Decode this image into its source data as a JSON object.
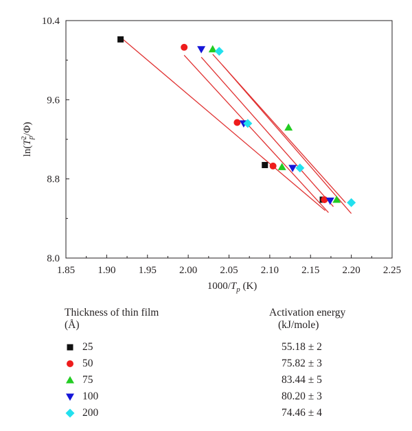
{
  "chart_data": {
    "type": "scatter",
    "xlabel_main": "1000/",
    "xlabel_var": "T",
    "xlabel_sub": "p",
    "xlabel_unit": " (K)",
    "ylabel_prefix": "ln(",
    "ylabel_var": "T",
    "ylabel_sup": "2",
    "ylabel_sub": "p",
    "ylabel_suffix": "/Φ)",
    "xlim": [
      1.85,
      2.25
    ],
    "ylim": [
      8.0,
      10.4
    ],
    "xticks": [
      "1.85",
      "1.90",
      "1.95",
      "2.00",
      "2.05",
      "2.10",
      "2.15",
      "2.20",
      "2.25"
    ],
    "yticks": [
      "8.0",
      "8.8",
      "9.6",
      "10.4"
    ],
    "grid": false,
    "fit_line_color": "#e03131",
    "series": [
      {
        "name": "25",
        "marker": "square",
        "color": "#111111",
        "x": [
          1.917,
          2.094,
          2.165
        ],
        "y": [
          10.21,
          8.94,
          8.59
        ],
        "fit": [
          [
            1.92,
            10.21
          ],
          [
            2.168,
            8.48
          ]
        ]
      },
      {
        "name": "50",
        "marker": "circle",
        "color": "#ee1c1c",
        "x": [
          1.995,
          2.06,
          2.104,
          2.167
        ],
        "y": [
          10.13,
          9.37,
          8.93,
          8.59
        ],
        "fit": [
          [
            1.995,
            10.05
          ],
          [
            2.172,
            8.46
          ]
        ]
      },
      {
        "name": "75",
        "marker": "triangle-up",
        "color": "#22cc22",
        "x": [
          2.03,
          2.123,
          2.115,
          2.182
        ],
        "y": [
          10.11,
          9.32,
          8.92,
          8.59
        ],
        "fit": [
          [
            2.03,
            10.06
          ],
          [
            2.193,
            8.56
          ]
        ]
      },
      {
        "name": "100",
        "marker": "triangle-down",
        "color": "#1515d8",
        "x": [
          2.016,
          2.068,
          2.128,
          2.174
        ],
        "y": [
          10.11,
          9.36,
          8.91,
          8.58
        ],
        "fit": [
          [
            2.016,
            10.03
          ],
          [
            2.178,
            8.52
          ]
        ]
      },
      {
        "name": "200",
        "marker": "diamond",
        "color": "#22e0ee",
        "x": [
          2.038,
          2.073,
          2.137,
          2.2
        ],
        "y": [
          10.09,
          9.36,
          8.91,
          8.56
        ],
        "fit": [
          [
            2.042,
            9.95
          ],
          [
            2.2,
            8.45
          ]
        ]
      }
    ]
  },
  "legend_table": {
    "col1_header": "Thickness of thin film",
    "col1_unit": "(Å)",
    "col2_header": "Activation energy",
    "col2_unit": "(kJ/mole)",
    "rows": [
      {
        "thickness": "25",
        "energy": "55.18 ± 2"
      },
      {
        "thickness": "50",
        "energy": "75.82 ± 3"
      },
      {
        "thickness": "75",
        "energy": "83.44 ± 5"
      },
      {
        "thickness": "100",
        "energy": "80.20 ± 3"
      },
      {
        "thickness": "200",
        "energy": "74.46 ± 4"
      }
    ]
  }
}
